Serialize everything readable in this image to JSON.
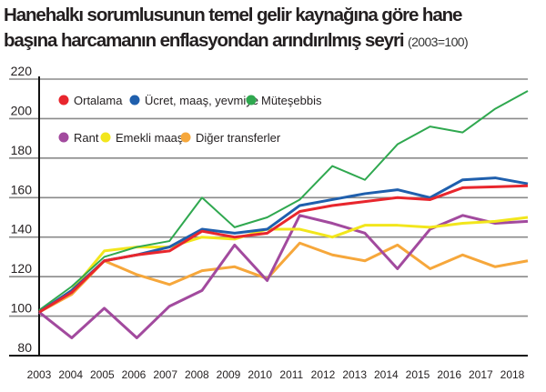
{
  "chart_data": {
    "type": "line",
    "title_line1": "Hanehalkı sorumlusunun temel gelir kaynağına göre hane",
    "title_line2": "başına harcamanın enflasyondan arındırılmış seyri",
    "subtitle": "(2003=100)",
    "x": [
      "2003",
      "2004",
      "2005",
      "2006",
      "2007",
      "2008",
      "2009",
      "2010",
      "2011",
      "2012",
      "2013",
      "2014",
      "2015",
      "2016",
      "2017",
      "2018"
    ],
    "yticks": [
      80,
      100,
      120,
      140,
      160,
      180,
      200,
      220
    ],
    "ylim": [
      80,
      220
    ],
    "grid": true,
    "legend_placement": "top-left",
    "series": [
      {
        "name": "Ortalama",
        "color": "#e8262d",
        "values": [
          102,
          112,
          128,
          131,
          133,
          143,
          140,
          142,
          153,
          156,
          158,
          160,
          159,
          165,
          165.5,
          166
        ]
      },
      {
        "name": "Ücret, maaş, yevmiye",
        "color": "#1f5fad",
        "values": [
          102,
          113,
          128,
          131,
          135,
          144,
          142,
          144,
          156,
          159,
          162,
          164,
          160,
          169,
          170,
          167
        ]
      },
      {
        "name": "Müteşebbis",
        "color": "#2fa84f",
        "values": [
          103,
          115,
          130,
          135,
          138,
          160,
          145,
          150,
          159,
          176,
          169,
          187,
          196,
          193,
          205,
          214
        ]
      },
      {
        "name": "Rant",
        "color": "#a24a9e",
        "values": [
          102,
          89,
          104,
          89,
          105,
          113,
          136,
          118,
          151,
          147,
          142,
          124,
          144,
          151,
          147,
          148
        ]
      },
      {
        "name": "Emekli maaşı",
        "color": "#f2e61c",
        "values": [
          102,
          113,
          133,
          135,
          135,
          140,
          139,
          144,
          144,
          140,
          146,
          146,
          145,
          147,
          148,
          150
        ]
      },
      {
        "name": "Diğer transferler",
        "color": "#f6a73b",
        "values": [
          102,
          111,
          128,
          121,
          116,
          123,
          125,
          119,
          137,
          131,
          128,
          136,
          124,
          131,
          125,
          128
        ]
      }
    ]
  }
}
